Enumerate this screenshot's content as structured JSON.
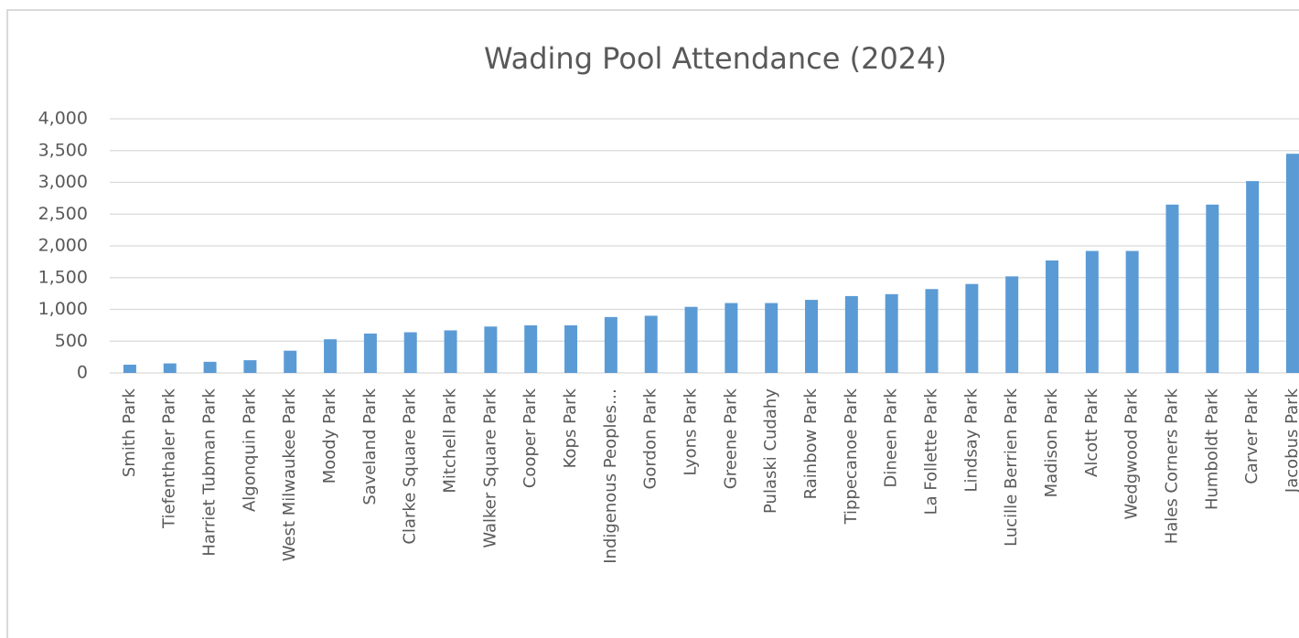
{
  "chart_data": {
    "type": "bar",
    "title": "Wading Pool Attendance (2024)",
    "categories": [
      "Smith Park",
      "Tiefenthaler Park",
      "Harriet Tubman Park",
      "Algonquin Park",
      "West Milwaukee Park",
      "Moody Park",
      "Saveland Park",
      "Clarke Square Park",
      "Mitchell Park",
      "Walker Square Park",
      "Cooper Park",
      "Kops Park",
      "Indigenous Peoples…",
      "Gordon Park",
      "Lyons Park",
      "Greene Park",
      "Pulaski Cudahy",
      "Rainbow Park",
      "Tippecanoe Park",
      "Dineen Park",
      "La Follette Park",
      "Lindsay Park",
      "Lucille Berrien Park",
      "Madison Park",
      "Alcott Park",
      "Wedgwood Park",
      "Hales Corners Park",
      "Humboldt Park",
      "Carver Park",
      "Jacobus Park"
    ],
    "values": [
      130,
      150,
      175,
      200,
      350,
      530,
      620,
      640,
      670,
      730,
      750,
      750,
      880,
      900,
      1040,
      1100,
      1100,
      1150,
      1210,
      1240,
      1320,
      1400,
      1520,
      1770,
      1920,
      1920,
      2650,
      2650,
      3020,
      3450
    ],
    "color": "#5b9bd5",
    "ylim": [
      0,
      4000
    ],
    "yticks": [
      0,
      500,
      {
        "value": 1000,
        "label": "1,000"
      },
      {
        "value": 1500,
        "label": "1,500"
      },
      {
        "value": 2000,
        "label": "2,000"
      },
      {
        "value": 2500,
        "label": "2,500"
      },
      {
        "value": 3000,
        "label": "3,000"
      },
      {
        "value": 3500,
        "label": "3,500"
      },
      {
        "value": 4000,
        "label": "4,000"
      }
    ],
    "grid": true
  }
}
